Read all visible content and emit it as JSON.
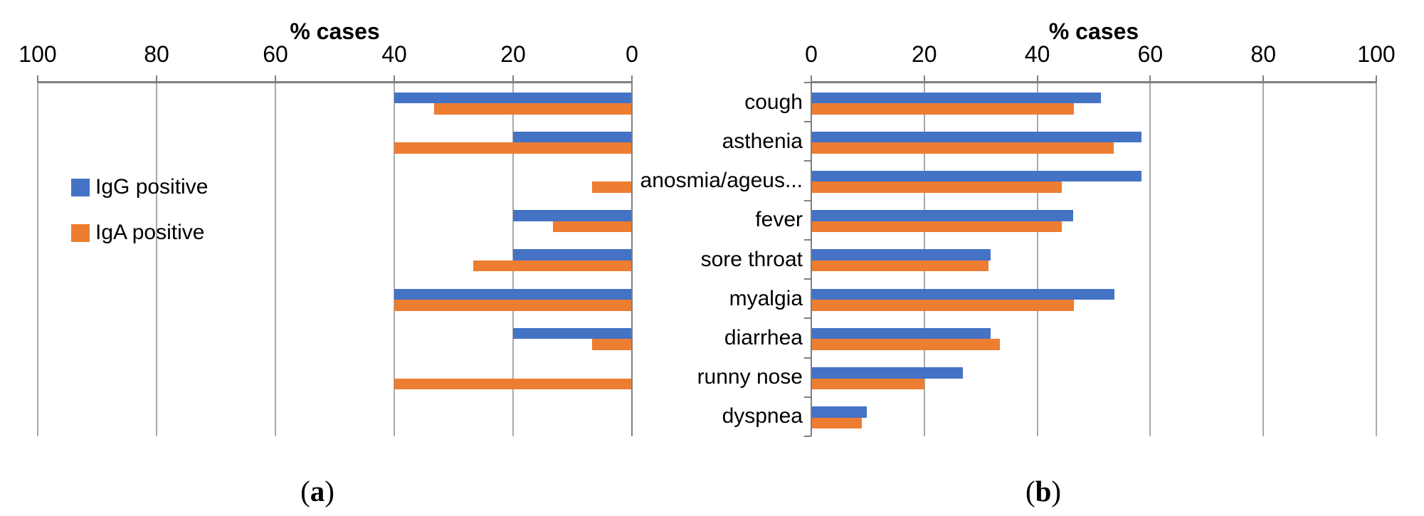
{
  "figure": {
    "captions": {
      "a": {
        "open": "(",
        "letter": "a",
        "close": ")"
      },
      "b": {
        "open": "(",
        "letter": "b",
        "close": ")"
      }
    }
  },
  "legend": {
    "position": "middle-left overlay on panel a",
    "items": [
      {
        "label": "IgG positive",
        "color": "#4472C4"
      },
      {
        "label": "IgA positive",
        "color": "#ED7D31"
      }
    ]
  },
  "colors": {
    "igg_blue": "#4472C4",
    "iga_orange": "#ED7D31",
    "gridline": "#A9A9A9",
    "axis_line": "#7F7F7F",
    "text": "#000000"
  },
  "chart_data": [
    {
      "id": "panel-a",
      "type": "bar",
      "orientation": "horizontal",
      "title": "% cases",
      "axis_title": "% cases",
      "value_axis_position": "top",
      "value_axis_reversed": true,
      "xlim": [
        0,
        100
      ],
      "ticks": [
        100,
        80,
        60,
        40,
        20,
        0
      ],
      "grid": true,
      "category_labels_visible": false,
      "categories": [
        "cough",
        "asthenia",
        "anosmia/ageus...",
        "fever",
        "sore throat",
        "myalgia",
        "diarrhea",
        "runny nose",
        "dyspnea"
      ],
      "series": [
        {
          "name": "IgG positive",
          "color": "#4472C4",
          "values": [
            40,
            20,
            0,
            20,
            20,
            40,
            20,
            0,
            0
          ]
        },
        {
          "name": "IgA positive",
          "color": "#ED7D31",
          "values": [
            33.3,
            40,
            6.7,
            13.3,
            26.7,
            40,
            6.7,
            40,
            0
          ]
        }
      ],
      "caption": "(a)"
    },
    {
      "id": "panel-b",
      "type": "bar",
      "orientation": "horizontal",
      "title": "% cases",
      "axis_title": "% cases",
      "value_axis_position": "top",
      "value_axis_reversed": false,
      "xlim": [
        0,
        100
      ],
      "ticks": [
        0,
        20,
        40,
        60,
        80,
        100
      ],
      "grid": true,
      "category_labels_visible": true,
      "categories": [
        "cough",
        "asthenia",
        "anosmia/ageus...",
        "fever",
        "sore throat",
        "myalgia",
        "diarrhea",
        "runny nose",
        "dyspnea"
      ],
      "series": [
        {
          "name": "IgG positive",
          "color": "#4472C4",
          "values": [
            51.2,
            58.5,
            58.5,
            46.3,
            31.7,
            53.7,
            31.7,
            26.8,
            9.8
          ]
        },
        {
          "name": "IgA positive",
          "color": "#ED7D31",
          "values": [
            46.5,
            53.5,
            44.3,
            44.3,
            31.3,
            46.5,
            33.4,
            20,
            9
          ]
        }
      ],
      "caption": "(b)"
    }
  ]
}
